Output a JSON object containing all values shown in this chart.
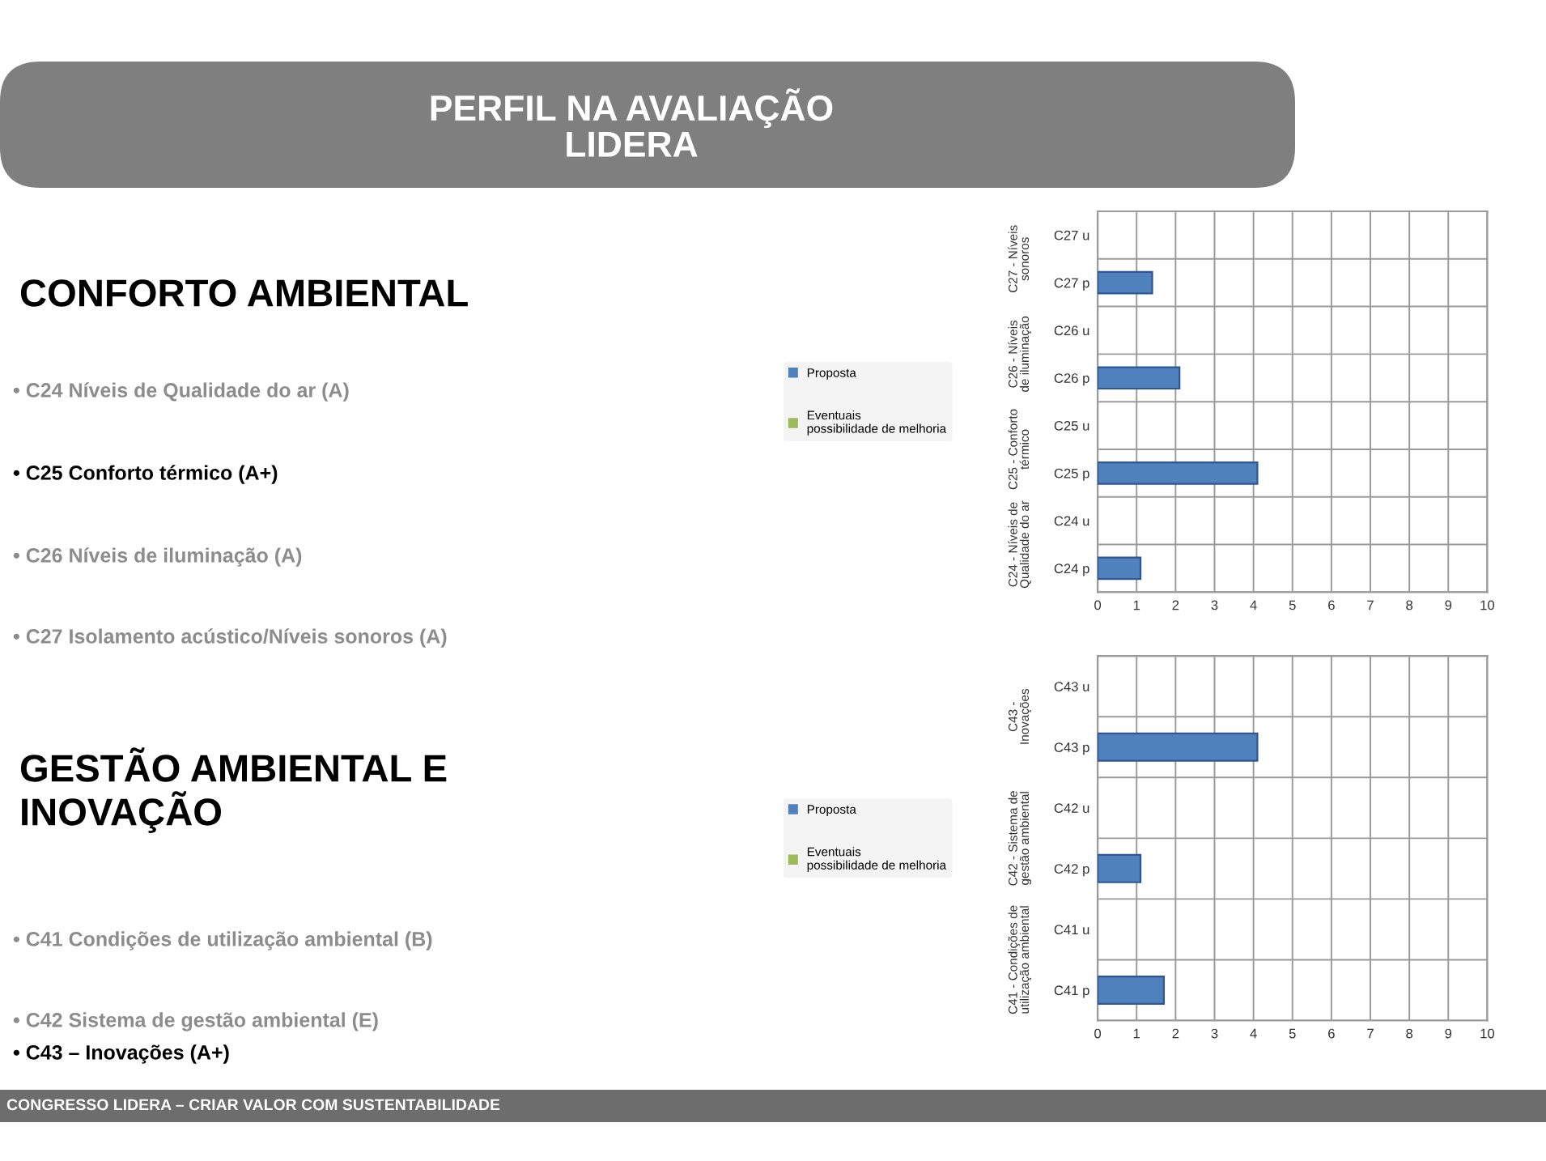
{
  "chart_data": [
    {
      "type": "other",
      "title": "PERFIL NA AVALIAÇÃO LIDERA",
      "annotations": [
        "CONFORTO AMBIENTAL",
        "• C24 Níveis de Qualidade do ar (A)",
        "• C25 Conforto térmico (A+)",
        "• C26 Níveis de iluminação (A)",
        "• C27 Isolamento acústico/Níveis sonoros (A)",
        "GESTÃO AMBIENTAL E INOVAÇÃO",
        "• C41 Condições de utilização ambiental (B)",
        "• C42 Sistema de gestão ambiental (E)",
        "• C43 – Inovações (A+)",
        "CONGRESSO LIDERA – CRIAR VALOR COM SUSTENTABILIDADE"
      ]
    },
    {
      "type": "bar",
      "orientation": "horizontal",
      "categories": [
        "C27 u",
        "C27 p",
        "C26 u",
        "C26 p",
        "C25 u",
        "C25 p",
        "C24 u",
        "C24 p"
      ],
      "series": [
        {
          "name": "Proposta",
          "color": "#4f81bd",
          "values": [
            null,
            1.4,
            null,
            2.1,
            null,
            4.1,
            null,
            1.1
          ]
        },
        {
          "name": "Eventuais possibilidade de melhoria",
          "color": "#9bbb59",
          "values": [
            null,
            null,
            null,
            null,
            null,
            null,
            null,
            null
          ]
        }
      ],
      "xlim": [
        0,
        10
      ],
      "xticks": [
        0,
        1,
        2,
        3,
        4,
        5,
        6,
        7,
        8,
        9,
        10
      ],
      "grid": true,
      "legend": "left",
      "annotations": [
        "C27 - Níveis sonoros",
        "C26 - Níveis de iluminação",
        "C25 - Conforto térmico",
        "C24 - Níveis de Qualidade do ar"
      ]
    },
    {
      "type": "bar",
      "orientation": "horizontal",
      "categories": [
        "C43 u",
        "C43 p",
        "C42 u",
        "C42 p",
        "C41 u",
        "C41 p"
      ],
      "series": [
        {
          "name": "Proposta",
          "color": "#4f81bd",
          "values": [
            null,
            4.1,
            null,
            1.1,
            null,
            1.7
          ]
        },
        {
          "name": "Eventuais possibilidade de melhoria",
          "color": "#9bbb59",
          "values": [
            null,
            null,
            null,
            null,
            null,
            null
          ]
        }
      ],
      "xlim": [
        0,
        10
      ],
      "xticks": [
        0,
        1,
        2,
        3,
        4,
        5,
        6,
        7,
        8,
        9,
        10
      ],
      "grid": true,
      "legend": "left",
      "annotations": [
        "C43 - Inovações",
        "C42 - Sistema de gestão ambiental",
        "C41 - Condições de utilização ambiental"
      ]
    }
  ]
}
